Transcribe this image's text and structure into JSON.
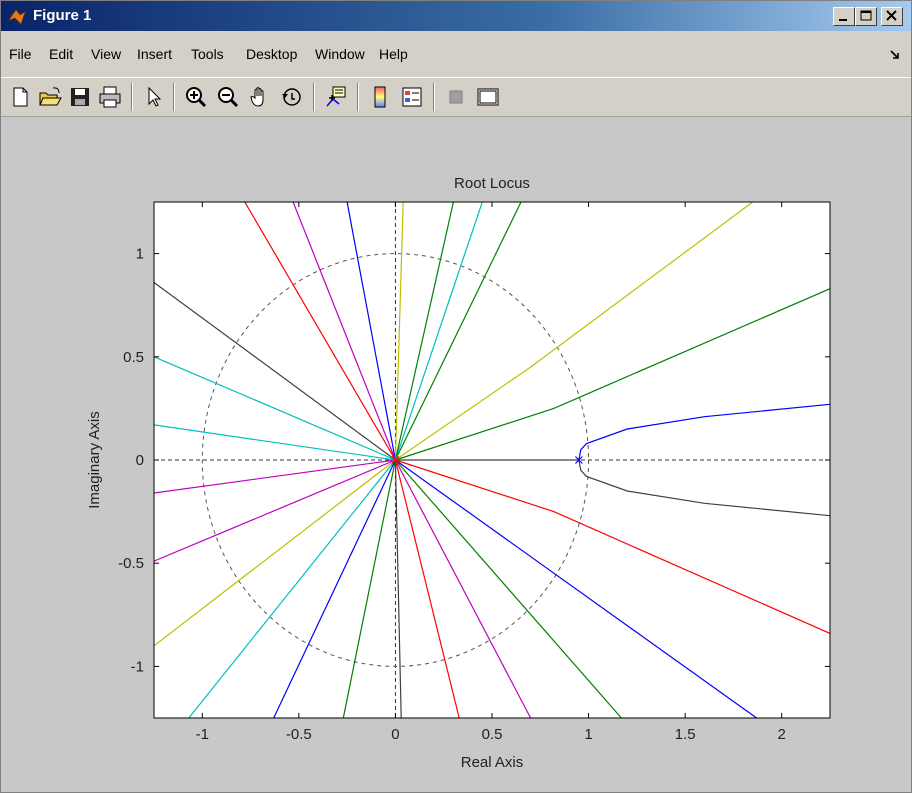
{
  "window": {
    "title": "Figure 1",
    "controls": [
      "minimize",
      "maximize",
      "close"
    ]
  },
  "menu": {
    "items": [
      "File",
      "Edit",
      "View",
      "Insert",
      "Tools",
      "Desktop",
      "Window",
      "Help"
    ]
  },
  "toolbar": {
    "buttons": [
      "new-figure-icon",
      "open-file-icon",
      "save-icon",
      "print-icon",
      "edit-plot-arrow-icon",
      "zoom-in-icon",
      "zoom-out-icon",
      "pan-hand-icon",
      "rotate-3d-icon",
      "data-cursor-icon",
      "insert-colorbar-icon",
      "insert-legend-icon",
      "hide-plot-tools-icon",
      "show-plot-tools-icon"
    ]
  },
  "chart_data": {
    "type": "line",
    "title": "Root Locus",
    "xlabel": "Real Axis",
    "ylabel": "Imaginary Axis",
    "xlim": [
      -1.25,
      2.25
    ],
    "ylim": [
      -1.25,
      1.25
    ],
    "xticks": [
      -1,
      -0.5,
      0,
      0.5,
      1,
      1.5,
      2
    ],
    "yticks": [
      -1,
      -0.5,
      0,
      0.5,
      1
    ],
    "xtick_labels": [
      "-1",
      "-0.5",
      "0",
      "0.5",
      "1",
      "1.5",
      "2"
    ],
    "ytick_labels": [
      "-1",
      "-0.5",
      "0",
      "0.5",
      "1"
    ],
    "grid": false,
    "unit_circle": {
      "style": "dashed",
      "radius": 1
    },
    "poles": [
      {
        "x": 0.95,
        "y": 0
      },
      {
        "x": 0,
        "y": 0
      }
    ],
    "series": [
      {
        "color": "#0000ff",
        "points": [
          [
            0.95,
            0
          ],
          [
            0.96,
            0.05
          ],
          [
            0.99,
            0.08
          ],
          [
            1.2,
            0.15
          ],
          [
            1.6,
            0.21
          ],
          [
            2.25,
            0.27
          ]
        ]
      },
      {
        "color": "#404040",
        "points": [
          [
            0.95,
            0
          ],
          [
            0.96,
            -0.05
          ],
          [
            0.99,
            -0.08
          ],
          [
            1.2,
            -0.15
          ],
          [
            1.6,
            -0.21
          ],
          [
            2.25,
            -0.27
          ]
        ]
      },
      {
        "color": "#404040",
        "points": [
          [
            0,
            0
          ],
          [
            0.95,
            0
          ]
        ]
      },
      {
        "color": "#008000",
        "points": [
          [
            0,
            0
          ],
          [
            0.82,
            0.25
          ],
          [
            2.25,
            0.83
          ]
        ]
      },
      {
        "color": "#bfbf00",
        "points": [
          [
            0,
            0
          ],
          [
            0.7,
            0.45
          ],
          [
            1.85,
            1.25
          ]
        ]
      },
      {
        "color": "#008000",
        "points": [
          [
            0,
            0
          ],
          [
            0.65,
            1.25
          ]
        ]
      },
      {
        "color": "#00bfbf",
        "points": [
          [
            0,
            0
          ],
          [
            0.45,
            1.25
          ]
        ]
      },
      {
        "color": "#008000",
        "points": [
          [
            0,
            0
          ],
          [
            0.3,
            1.25
          ]
        ]
      },
      {
        "color": "#bfbf00",
        "points": [
          [
            0,
            0
          ],
          [
            0.04,
            1.25
          ]
        ]
      },
      {
        "color": "#0000ff",
        "points": [
          [
            0,
            0
          ],
          [
            -0.25,
            1.25
          ]
        ]
      },
      {
        "color": "#bf00bf",
        "points": [
          [
            0,
            0
          ],
          [
            -0.53,
            1.25
          ]
        ]
      },
      {
        "color": "#ff0000",
        "points": [
          [
            0,
            0
          ],
          [
            -0.78,
            1.25
          ]
        ]
      },
      {
        "color": "#404040",
        "points": [
          [
            0,
            0
          ],
          [
            -1.25,
            0.86
          ]
        ]
      },
      {
        "color": "#00bfbf",
        "points": [
          [
            0,
            0
          ],
          [
            -1.25,
            0.5
          ]
        ]
      },
      {
        "color": "#00bfbf",
        "points": [
          [
            0,
            0
          ],
          [
            -1.25,
            0.17
          ]
        ]
      },
      {
        "color": "#bf00bf",
        "points": [
          [
            0,
            0
          ],
          [
            -1.25,
            -0.16
          ]
        ]
      },
      {
        "color": "#bf00bf",
        "points": [
          [
            0,
            0
          ],
          [
            -1.25,
            -0.49
          ]
        ]
      },
      {
        "color": "#bfbf00",
        "points": [
          [
            0,
            0
          ],
          [
            -1.25,
            -0.9
          ]
        ]
      },
      {
        "color": "#00bfbf",
        "points": [
          [
            0,
            0
          ],
          [
            -1.07,
            -1.25
          ]
        ]
      },
      {
        "color": "#0000ff",
        "points": [
          [
            0,
            0
          ],
          [
            -0.63,
            -1.25
          ]
        ]
      },
      {
        "color": "#008000",
        "points": [
          [
            0,
            0
          ],
          [
            -0.27,
            -1.25
          ]
        ]
      },
      {
        "color": "#404040",
        "points": [
          [
            0,
            0
          ],
          [
            0.03,
            -1.25
          ]
        ]
      },
      {
        "color": "#ff0000",
        "points": [
          [
            0,
            0
          ],
          [
            0.33,
            -1.25
          ]
        ]
      },
      {
        "color": "#bf00bf",
        "points": [
          [
            0,
            0
          ],
          [
            0.7,
            -1.25
          ]
        ]
      },
      {
        "color": "#008000",
        "points": [
          [
            0,
            0
          ],
          [
            1.17,
            -1.25
          ]
        ]
      },
      {
        "color": "#0000ff",
        "points": [
          [
            0,
            0
          ],
          [
            1.87,
            -1.25
          ]
        ]
      },
      {
        "color": "#ff0000",
        "points": [
          [
            0,
            0
          ],
          [
            0.82,
            -0.25
          ],
          [
            2.25,
            -0.84
          ]
        ]
      }
    ]
  }
}
